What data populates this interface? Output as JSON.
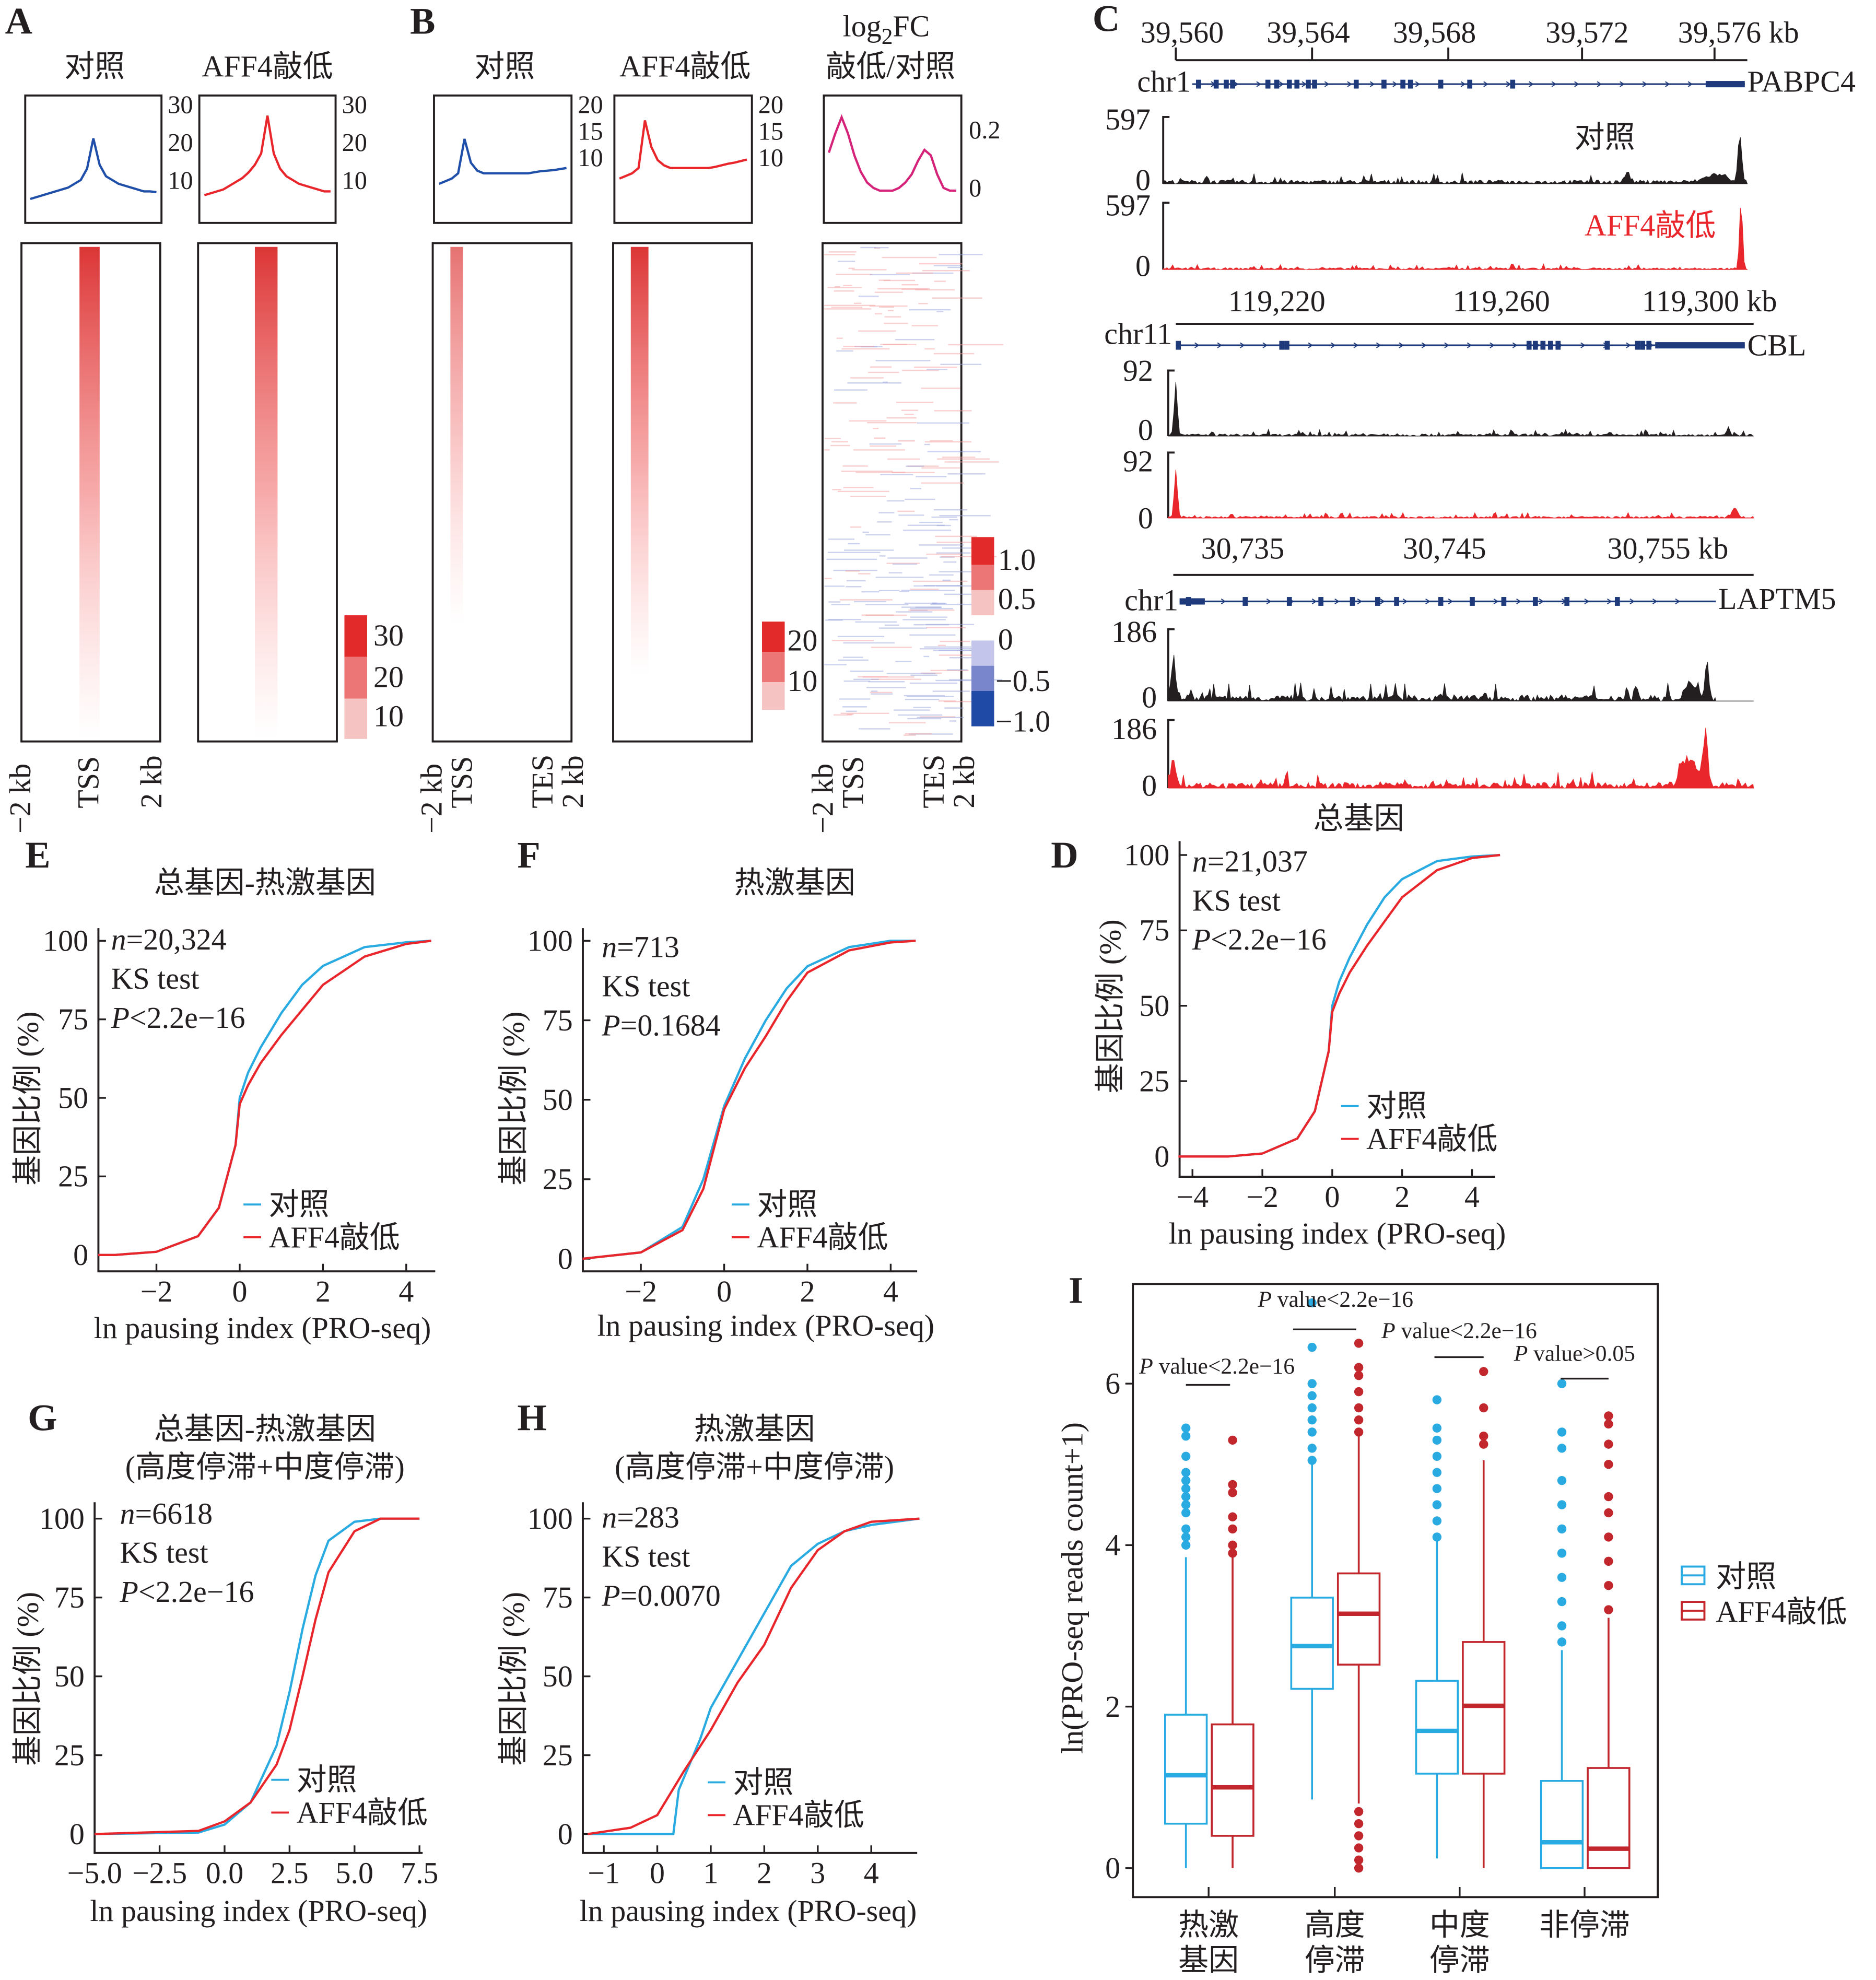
{
  "panel_labels": {
    "A": "A",
    "B": "B",
    "C": "C",
    "D": "D",
    "E": "E",
    "F": "F",
    "G": "G",
    "H": "H",
    "I": "I"
  },
  "panelA": {
    "titles": [
      "对照",
      "AFF4敲低"
    ],
    "profile_ticks": [
      "30",
      "20",
      "10"
    ],
    "colorbar": [
      "30",
      "20",
      "10"
    ],
    "xlabels": [
      "−2 kb",
      "TSS",
      "2 kb"
    ]
  },
  "panelB": {
    "titles": [
      "对照",
      "AFF4敲低"
    ],
    "fc_title_log": "log",
    "fc_title_sub": "2",
    "fc_title_fc": "FC",
    "fc_title_ratio": "敲低/对照",
    "profile_ticks": [
      "20",
      "15",
      "10"
    ],
    "fc_ticks": [
      "0.2",
      "0"
    ],
    "colorbar": [
      "20",
      "10"
    ],
    "fc_colorbar": [
      "1.0",
      "0.5",
      "0",
      "−0.5",
      "−1.0"
    ],
    "xlabels": [
      "−2 kb",
      "TSS",
      "TES",
      "2 kb"
    ]
  },
  "panelC": {
    "tracks": [
      {
        "coords": [
          "39,560",
          "39,564",
          "39,568",
          "39,572",
          "39,576 kb"
        ],
        "chrom": "chr1",
        "gene": "PABPC4",
        "max": "597",
        "min": "0",
        "sample_labels": [
          "对照",
          "AFF4敲低"
        ]
      },
      {
        "coords": [
          "119,220",
          "119,260",
          "119,300 kb"
        ],
        "chrom": "chr11",
        "gene": "CBL",
        "max": "92",
        "min": "0"
      },
      {
        "coords": [
          "30,735",
          "30,745",
          "30,755 kb"
        ],
        "chrom": "chr1",
        "gene": "LAPTM5",
        "max": "186",
        "min": "0"
      }
    ]
  },
  "colors": {
    "control_cdf": "#29abe2",
    "knockdown": "#e8262b",
    "profile_control": "#1f4fa8",
    "profile_fc": "#d6237a",
    "box_knockdown": "#c1272d",
    "gene_model": "#1f3a7a"
  },
  "chart_data": [
    {
      "id": "A-profile-control",
      "type": "line",
      "x": [
        -2,
        -1.8,
        -1.6,
        -1.4,
        -1.2,
        -1,
        -0.8,
        -0.6,
        -0.4,
        -0.2,
        0,
        0.2,
        0.4,
        0.6,
        0.8,
        1,
        1.2,
        1.4,
        1.6,
        1.8,
        2
      ],
      "values": [
        5,
        5.5,
        6,
        6.5,
        7,
        7.5,
        8,
        9,
        10,
        13,
        21,
        14,
        11,
        10,
        9,
        8.5,
        8,
        7.5,
        7,
        7,
        6.8
      ],
      "ylim": [
        0,
        32
      ]
    },
    {
      "id": "A-profile-knockdown",
      "type": "line",
      "x": [
        -2,
        -1.8,
        -1.6,
        -1.4,
        -1.2,
        -1,
        -0.8,
        -0.6,
        -0.4,
        -0.2,
        0,
        0.2,
        0.4,
        0.6,
        0.8,
        1,
        1.2,
        1.4,
        1.6,
        1.8,
        2
      ],
      "values": [
        6,
        6.5,
        7,
        7.5,
        8.5,
        9.5,
        10.5,
        12,
        14,
        17,
        27,
        17,
        13,
        11,
        10,
        9,
        8.5,
        8,
        7.5,
        7,
        7
      ],
      "ylim": [
        0,
        32
      ]
    },
    {
      "id": "B-profile-control",
      "type": "line",
      "values": [
        5,
        5.5,
        6,
        7,
        13.5,
        9,
        7.5,
        7,
        7,
        7,
        7,
        7,
        7,
        7,
        7,
        7.2,
        7.4,
        7.5,
        7.6,
        7.8,
        8
      ],
      "ylim": [
        0,
        21
      ]
    },
    {
      "id": "B-profile-knockdown",
      "type": "line",
      "values": [
        6,
        6.5,
        7,
        8,
        17,
        12,
        9.5,
        8.5,
        8,
        8,
        8,
        8,
        8,
        8,
        8,
        8.2,
        8.5,
        8.8,
        9,
        9.3,
        9.6
      ],
      "ylim": [
        0,
        21
      ]
    },
    {
      "id": "B-profile-log2fc",
      "type": "line",
      "values": [
        0.13,
        0.2,
        0.26,
        0.2,
        0.12,
        0.06,
        0.02,
        0,
        -0.01,
        -0.01,
        -0.01,
        0,
        0.02,
        0.05,
        0.1,
        0.14,
        0.12,
        0.05,
        0,
        -0.01,
        -0.01
      ],
      "ylim": [
        -0.02,
        0.3
      ]
    },
    {
      "id": "D",
      "type": "line",
      "title": "总基因",
      "xlabel": "ln pausing index (PRO-seq)",
      "ylabel": "基因比例 (%)",
      "xticks": [
        "−4",
        "−2",
        "0",
        "2",
        "4"
      ],
      "xtick_values": [
        -4,
        -2,
        0,
        2,
        4
      ],
      "yticks": [
        "0",
        "25",
        "50",
        "75",
        "100"
      ],
      "xlim": [
        -4.4,
        4.8
      ],
      "ylim": [
        0,
        100
      ],
      "stats": {
        "n_label": "n",
        "n_value": "=21,037",
        "test": "KS test",
        "p_label": "P",
        "p_value": "<2.2e−16"
      },
      "legend": [
        "对照",
        "AFF4敲低"
      ],
      "series": [
        {
          "name": "对照",
          "x": [
            -4.4,
            -3,
            -2,
            -1,
            -0.5,
            -0.1,
            0,
            0.2,
            0.5,
            1,
            1.5,
            2,
            3,
            4,
            4.8
          ],
          "values": [
            0,
            0,
            1,
            6,
            15,
            35,
            50,
            58,
            66,
            77,
            86,
            92,
            98,
            99.5,
            100
          ]
        },
        {
          "name": "AFF4敲低",
          "x": [
            -4.4,
            -3,
            -2,
            -1,
            -0.5,
            -0.1,
            0,
            0.2,
            0.5,
            1,
            1.5,
            2,
            3,
            4,
            4.8
          ],
          "values": [
            0,
            0,
            1,
            6,
            15,
            35,
            48,
            54,
            61,
            70,
            78,
            86,
            95,
            99,
            100
          ]
        }
      ]
    },
    {
      "id": "E",
      "type": "line",
      "title": "总基因-热激基因",
      "xlabel": "ln pausing index (PRO-seq)",
      "ylabel": "基因比例 (%)",
      "xticks": [
        "−2",
        "0",
        "2",
        "4"
      ],
      "xtick_values": [
        -2,
        0,
        2,
        4
      ],
      "yticks": [
        "0",
        "25",
        "50",
        "75",
        "100"
      ],
      "xlim": [
        -3.4,
        4.6
      ],
      "ylim": [
        0,
        100
      ],
      "stats": {
        "n_label": "n",
        "n_value": "=20,324",
        "test": "KS test",
        "p_label": "P",
        "p_value": "<2.2e−16"
      },
      "legend": [
        "对照",
        "AFF4敲低"
      ],
      "series": [
        {
          "name": "对照",
          "x": [
            -3.4,
            -3,
            -2,
            -1,
            -0.5,
            -0.1,
            0,
            0.2,
            0.5,
            1,
            1.5,
            2,
            3,
            4,
            4.6
          ],
          "values": [
            0,
            0,
            1,
            6,
            15,
            35,
            50,
            58,
            66,
            77,
            86,
            92,
            98,
            99.5,
            100
          ]
        },
        {
          "name": "AFF4敲低",
          "x": [
            -3.4,
            -3,
            -2,
            -1,
            -0.5,
            -0.1,
            0,
            0.2,
            0.5,
            1,
            1.5,
            2,
            3,
            4,
            4.6
          ],
          "values": [
            0,
            0,
            1,
            6,
            15,
            35,
            48,
            54,
            61,
            70,
            78,
            86,
            95,
            99,
            100
          ]
        }
      ]
    },
    {
      "id": "F",
      "type": "line",
      "title": "热激基因",
      "xlabel": "ln pausing index (PRO-seq)",
      "ylabel": "基因比例 (%)",
      "xticks": [
        "−2",
        "0",
        "2",
        "4"
      ],
      "xtick_values": [
        -2,
        0,
        2,
        4
      ],
      "yticks": [
        "0",
        "25",
        "50",
        "75",
        "100"
      ],
      "xlim": [
        -3.4,
        4.6
      ],
      "ylim": [
        0,
        100
      ],
      "stats": {
        "n_label": "n",
        "n_value": "=713",
        "test": "KS test",
        "p_label": "P",
        "p_value": "=0.1684"
      },
      "legend": [
        "对照",
        "AFF4敲低"
      ],
      "series": [
        {
          "name": "对照",
          "x": [
            -3.4,
            -2,
            -1,
            -0.5,
            0,
            0.5,
            1,
            1.5,
            2,
            3,
            4,
            4.6
          ],
          "values": [
            0,
            2,
            10,
            25,
            48,
            63,
            75,
            85,
            92,
            98,
            100,
            100
          ]
        },
        {
          "name": "AFF4敲低",
          "x": [
            -3.4,
            -2,
            -1,
            -0.5,
            0,
            0.5,
            1,
            1.5,
            2,
            3,
            4,
            4.6
          ],
          "values": [
            0,
            2,
            9,
            22,
            47,
            60,
            70,
            81,
            90,
            97,
            99.5,
            100
          ]
        }
      ]
    },
    {
      "id": "G",
      "type": "line",
      "title": [
        "总基因-热激基因",
        "(高度停滞+中度停滞)"
      ],
      "xlabel": "ln pausing index (PRO-seq)",
      "ylabel": "基因比例 (%)",
      "xticks": [
        "−5.0",
        "−2.5",
        "0.0",
        "2.5",
        "5.0",
        "7.5"
      ],
      "xtick_values": [
        -5,
        -2.5,
        0,
        2.5,
        5,
        7.5
      ],
      "yticks": [
        "0",
        "25",
        "50",
        "75",
        "100"
      ],
      "xlim": [
        -5,
        7.5
      ],
      "ylim": [
        0,
        100
      ],
      "stats": {
        "n_label": "n",
        "n_value": "=6618",
        "test": "KS test",
        "p_label": "P",
        "p_value": "<2.2e−16"
      },
      "legend": [
        "对照",
        "AFF4敲低"
      ],
      "series": [
        {
          "name": "对照",
          "x": [
            -5,
            -1,
            0,
            1,
            2,
            2.5,
            3,
            3.5,
            4,
            5,
            6,
            7.5
          ],
          "values": [
            0,
            0.5,
            3,
            10,
            28,
            45,
            65,
            82,
            93,
            99,
            100,
            100
          ]
        },
        {
          "name": "AFF4敲低",
          "x": [
            -5,
            -1,
            0,
            1,
            2,
            2.5,
            3,
            3.5,
            4,
            5,
            6,
            7.5
          ],
          "values": [
            0,
            1,
            4,
            10,
            22,
            33,
            50,
            68,
            83,
            96,
            100,
            100
          ]
        }
      ]
    },
    {
      "id": "H",
      "type": "line",
      "title": [
        "热激基因",
        "(高度停滞+中度停滞)"
      ],
      "xlabel": "ln pausing index (PRO-seq)",
      "ylabel": "基因比例 (%)",
      "xticks": [
        "−1",
        "0",
        "1",
        "2",
        "3",
        "4"
      ],
      "xtick_values": [
        -1,
        0,
        1,
        2,
        3,
        4
      ],
      "yticks": [
        "0",
        "25",
        "50",
        "75",
        "100"
      ],
      "xlim": [
        -1.3,
        4.9
      ],
      "ylim": [
        0,
        100
      ],
      "stats": {
        "n_label": "n",
        "n_value": "=283",
        "test": "KS test",
        "p_label": "P",
        "p_value": "=0.0070"
      },
      "legend": [
        "对照",
        "AFF4敲低"
      ],
      "series": [
        {
          "name": "对照",
          "x": [
            -1.3,
            0.3,
            0.4,
            0.8,
            1,
            1.5,
            2,
            2.5,
            3,
            3.5,
            4,
            4.9
          ],
          "values": [
            0,
            0,
            14,
            30,
            40,
            55,
            70,
            85,
            92,
            96,
            98,
            100
          ]
        },
        {
          "name": "AFF4敲低",
          "x": [
            -1.3,
            -0.5,
            0,
            0.5,
            1,
            1.5,
            2,
            2.5,
            3,
            3.5,
            4,
            4.9
          ],
          "values": [
            0,
            2,
            6,
            20,
            33,
            48,
            60,
            78,
            90,
            96,
            99,
            100
          ]
        }
      ]
    },
    {
      "id": "I",
      "type": "box",
      "ylabel": "ln(PRO-seq reads count+1)",
      "categories": [
        [
          "热激",
          "基因"
        ],
        [
          "高度",
          "停滞"
        ],
        [
          "中度",
          "停滞"
        ],
        [
          "非停滞"
        ]
      ],
      "yticks": [
        "0",
        "2",
        "4",
        "6"
      ],
      "ylim": [
        -0.3,
        7.3
      ],
      "legend": [
        "对照",
        "AFF4敲低"
      ],
      "pvalues": [
        {
          "p": "P",
          "text": " value<2.2e−16"
        },
        {
          "p": "P",
          "text": " value<2.2e−16"
        },
        {
          "p": "P",
          "text": " value<2.2e−16"
        },
        {
          "p": "P",
          "text": " value>0.05"
        }
      ],
      "series": [
        {
          "name": "对照",
          "boxes": [
            {
              "whislo": 0,
              "q1": 0.55,
              "med": 1.15,
              "q3": 1.9,
              "whishi": 3.85,
              "outliers": [
                4,
                4.1,
                4.2,
                4.4,
                4.5,
                4.6,
                4.7,
                4.8,
                4.9,
                5.1,
                5.35,
                5.45
              ]
            },
            {
              "whislo": 0.85,
              "q1": 2.22,
              "med": 2.75,
              "q3": 3.35,
              "whishi": 5.0,
              "outliers": [
                5.05,
                5.2,
                5.4,
                5.55,
                5.7,
                5.85,
                6.0,
                6.45,
                7.0
              ]
            },
            {
              "whislo": 0.12,
              "q1": 1.17,
              "med": 1.7,
              "q3": 2.32,
              "whishi": 4.05,
              "outliers": [
                4.1,
                4.3,
                4.5,
                4.7,
                4.9,
                5.1,
                5.3,
                5.45,
                5.8
              ]
            },
            {
              "whislo": 0,
              "q1": 0,
              "med": 0.32,
              "q3": 1.08,
              "whishi": 2.7,
              "outliers": [
                2.8,
                3.0,
                3.3,
                3.6,
                3.9,
                4.2,
                4.5,
                4.8,
                5.2,
                5.4,
                6.0
              ]
            }
          ]
        },
        {
          "name": "AFF4敲低",
          "boxes": [
            {
              "whislo": 0,
              "q1": 0.4,
              "med": 1.0,
              "q3": 1.78,
              "whishi": 3.85,
              "outliers": [
                3.9,
                4.0,
                4.2,
                4.35,
                4.65,
                4.75,
                5.3
              ]
            },
            {
              "whislo": 0.8,
              "q1": 2.52,
              "med": 3.15,
              "q3": 3.65,
              "whishi": 5.35,
              "outliers": [
                0,
                0.1,
                0.25,
                0.4,
                0.55,
                0.7,
                5.4,
                5.55,
                5.7,
                5.9,
                6.1,
                6.2,
                6.5
              ]
            },
            {
              "whislo": 0,
              "q1": 1.17,
              "med": 2.01,
              "q3": 2.8,
              "whishi": 5.05,
              "outliers": [
                5.25,
                5.35,
                5.7,
                6.15
              ]
            },
            {
              "whislo": 0,
              "q1": 0,
              "med": 0.24,
              "q3": 1.24,
              "whishi": 3.1,
              "outliers": [
                3.2,
                3.5,
                3.8,
                4.1,
                4.4,
                4.6,
                5.0,
                5.25,
                5.5,
                5.6
              ]
            }
          ]
        }
      ]
    }
  ]
}
